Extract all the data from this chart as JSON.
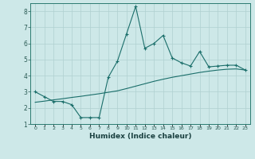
{
  "xlabel": "Humidex (Indice chaleur)",
  "bg_color": "#cde8e8",
  "line_color": "#1a6e6a",
  "grid_color": "#b0d0d0",
  "x_jagged": [
    0,
    1,
    2,
    3,
    4,
    5,
    6,
    7,
    8,
    9,
    10,
    11,
    12,
    13,
    14,
    15,
    16,
    17,
    18,
    19,
    20,
    21,
    22,
    23
  ],
  "y_jagged": [
    3.0,
    2.7,
    2.4,
    2.4,
    2.2,
    1.4,
    1.4,
    1.4,
    3.9,
    4.9,
    6.6,
    8.3,
    5.7,
    6.0,
    6.5,
    5.1,
    4.8,
    4.6,
    5.5,
    4.55,
    4.6,
    4.65,
    4.65,
    4.35
  ],
  "x_smooth": [
    0,
    1,
    2,
    3,
    4,
    5,
    6,
    7,
    8,
    9,
    10,
    11,
    12,
    13,
    14,
    15,
    16,
    17,
    18,
    19,
    20,
    21,
    22,
    23
  ],
  "y_smooth": [
    2.35,
    2.42,
    2.5,
    2.57,
    2.65,
    2.72,
    2.8,
    2.88,
    2.97,
    3.06,
    3.2,
    3.35,
    3.5,
    3.65,
    3.78,
    3.9,
    4.0,
    4.1,
    4.2,
    4.28,
    4.35,
    4.4,
    4.42,
    4.35
  ],
  "ylim": [
    1,
    8.5
  ],
  "xlim": [
    -0.5,
    23.5
  ],
  "yticks": [
    1,
    2,
    3,
    4,
    5,
    6,
    7,
    8
  ],
  "xtick_labels": [
    "0",
    "1",
    "2",
    "3",
    "4",
    "5",
    "6",
    "7",
    "8",
    "9",
    "10",
    "11",
    "12",
    "13",
    "14",
    "15",
    "16",
    "17",
    "18",
    "19",
    "20",
    "21",
    "22",
    "23"
  ],
  "spine_color": "#2a7a70",
  "tick_color": "#2a5a54",
  "label_color": "#1a4040"
}
